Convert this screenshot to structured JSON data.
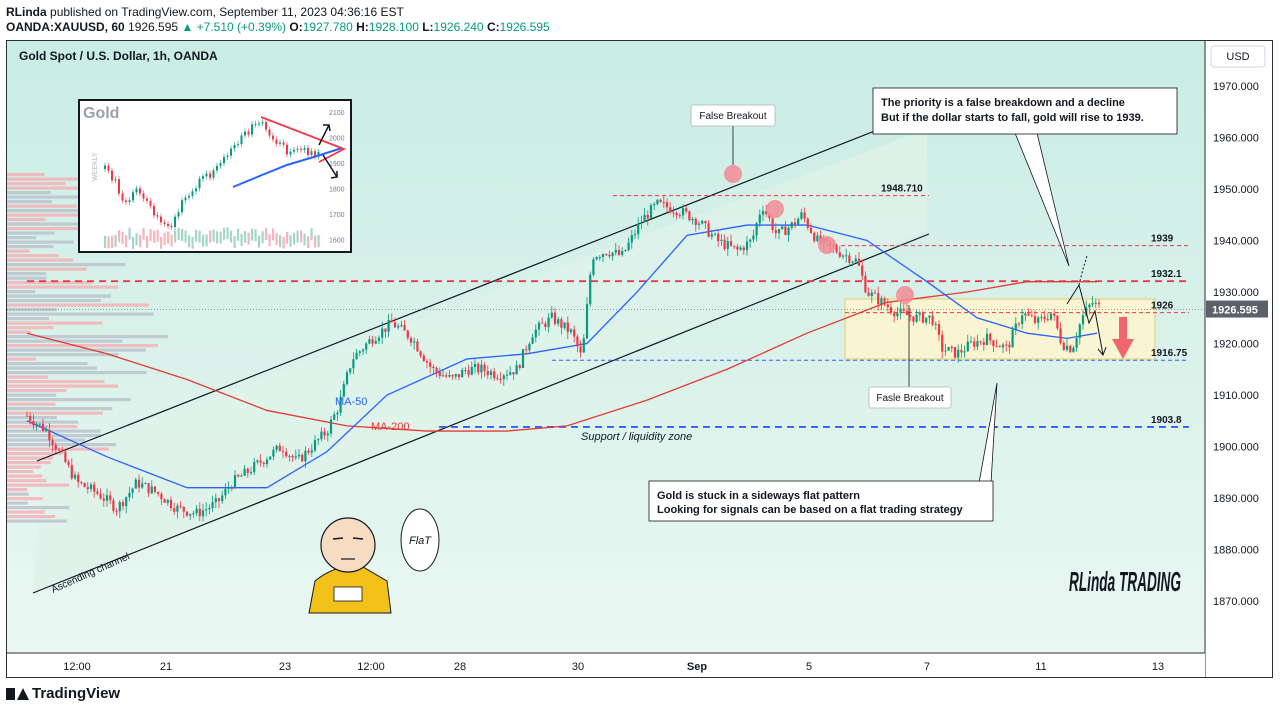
{
  "header": {
    "author": "RLinda",
    "published": "published on TradingView.com, September 11, 2023 04:36:16 EST",
    "symbol": "OANDA:XAUUSD, 60",
    "last": "1926.595",
    "change": "▲ +7.510 (+0.39%)",
    "o_label": "O:",
    "o": "1927.780",
    "h_label": "H:",
    "h": "1928.100",
    "l_label": "L:",
    "l": "1926.240",
    "c_label": "C:",
    "c": "1926.595"
  },
  "chart_title": "Gold Spot / U.S. Dollar, 1h, OANDA",
  "currency": "USD",
  "footer_brand": "TradingView",
  "annotations": {
    "false_breakout": "False Breakout",
    "fasle_breakout": "Fasle Breakout",
    "priority_line1": "The priority is a false breakdown and a decline",
    "priority_line2": "But if the dollar starts to fall, gold will rise to 1939.",
    "flat_line1": "Gold is stuck in a sideways flat pattern",
    "flat_line2": "Looking for signals can be based on a flat trading strategy",
    "support_zone": "Support / liquidity zone",
    "ascending_channel": "Ascending channel",
    "ma50": "MA-50",
    "ma200": "MA-200",
    "inset_title": "Gold",
    "inset_side": "WEEKLY",
    "inset_ticks": [
      "2100",
      "2000",
      "1900",
      "1800",
      "1700",
      "1600"
    ],
    "bubble": "FlaT",
    "rlinda_logo": "RLinda TRADING"
  },
  "colors": {
    "up": "#089981",
    "down": "#f23645",
    "ma50": "#2962ff",
    "ma200": "#e53935",
    "channel_fill": "#d6efe6",
    "range_fill": "#fff3c4",
    "level_red": "#f23645",
    "level_blue": "#2962ff"
  },
  "chart_data": {
    "type": "candlestick",
    "title": "Gold Spot / U.S. Dollar, 1h, OANDA",
    "yaxis_ticks": [
      "1970.000",
      "1960.000",
      "1950.000",
      "1940.000",
      "1930.000",
      "1920.000",
      "1910.000",
      "1900.000",
      "1890.000",
      "1880.000",
      "1870.000"
    ],
    "ylim": [
      1861,
      1979
    ],
    "xaxis_ticks": [
      "12:00",
      "21",
      "23",
      "12:00",
      "28",
      "30",
      "Sep",
      "5",
      "7",
      "11",
      "13"
    ],
    "last_price": "1926.595",
    "levels": [
      {
        "label": "1948.710",
        "value": 1948.71,
        "style": "red-dashed"
      },
      {
        "label": "1939",
        "value": 1939,
        "style": "red-dashed"
      },
      {
        "label": "1932.1",
        "value": 1932.1,
        "style": "red-dashed"
      },
      {
        "label": "1926",
        "value": 1926,
        "style": "red-dashed"
      },
      {
        "label": "1916.75",
        "value": 1916.75,
        "style": "blue-dashed"
      },
      {
        "label": "1903.8",
        "value": 1903.8,
        "style": "blue-dashed"
      }
    ],
    "price_path": [
      [
        0,
        1906
      ],
      [
        20,
        1903
      ],
      [
        35,
        1898
      ],
      [
        50,
        1893
      ],
      [
        70,
        1891
      ],
      [
        90,
        1888
      ],
      [
        110,
        1893
      ],
      [
        130,
        1891
      ],
      [
        150,
        1888
      ],
      [
        170,
        1887
      ],
      [
        190,
        1889
      ],
      [
        205,
        1893
      ],
      [
        220,
        1895
      ],
      [
        240,
        1898
      ],
      [
        255,
        1900
      ],
      [
        270,
        1897
      ],
      [
        285,
        1900
      ],
      [
        300,
        1903
      ],
      [
        312,
        1908
      ],
      [
        325,
        1917
      ],
      [
        345,
        1921
      ],
      [
        365,
        1924
      ],
      [
        385,
        1921
      ],
      [
        405,
        1915
      ],
      [
        425,
        1913
      ],
      [
        440,
        1915
      ],
      [
        455,
        1915
      ],
      [
        470,
        1914
      ],
      [
        490,
        1915
      ],
      [
        505,
        1922
      ],
      [
        525,
        1925
      ],
      [
        545,
        1922
      ],
      [
        555,
        1917
      ],
      [
        565,
        1937
      ],
      [
        580,
        1938
      ],
      [
        595,
        1937
      ],
      [
        615,
        1944
      ],
      [
        630,
        1947
      ],
      [
        650,
        1946
      ],
      [
        670,
        1944
      ],
      [
        690,
        1940
      ],
      [
        710,
        1938
      ],
      [
        725,
        1940
      ],
      [
        735,
        1947
      ],
      [
        750,
        1941
      ],
      [
        765,
        1943
      ],
      [
        775,
        1945
      ],
      [
        790,
        1940
      ],
      [
        810,
        1938
      ],
      [
        830,
        1936
      ],
      [
        840,
        1930
      ],
      [
        855,
        1928
      ],
      [
        870,
        1926
      ],
      [
        890,
        1925
      ],
      [
        905,
        1925
      ],
      [
        915,
        1919
      ],
      [
        930,
        1918
      ],
      [
        945,
        1920
      ],
      [
        960,
        1921
      ],
      [
        980,
        1919
      ],
      [
        995,
        1926
      ],
      [
        1010,
        1924
      ],
      [
        1025,
        1926
      ],
      [
        1035,
        1920
      ],
      [
        1045,
        1919
      ],
      [
        1055,
        1925
      ],
      [
        1065,
        1928
      ],
      [
        1075,
        1926.6
      ]
    ],
    "ma50_path": [
      [
        0,
        1905
      ],
      [
        80,
        1898
      ],
      [
        160,
        1892
      ],
      [
        240,
        1892
      ],
      [
        300,
        1899
      ],
      [
        360,
        1910
      ],
      [
        440,
        1917
      ],
      [
        500,
        1918
      ],
      [
        560,
        1920
      ],
      [
        610,
        1930
      ],
      [
        660,
        1941
      ],
      [
        720,
        1943
      ],
      [
        780,
        1943
      ],
      [
        840,
        1940
      ],
      [
        900,
        1932
      ],
      [
        950,
        1925
      ],
      [
        1000,
        1922
      ],
      [
        1040,
        1921
      ],
      [
        1070,
        1922
      ]
    ],
    "ma200_path": [
      [
        0,
        1922
      ],
      [
        80,
        1918
      ],
      [
        160,
        1913
      ],
      [
        240,
        1907
      ],
      [
        320,
        1904
      ],
      [
        400,
        1903
      ],
      [
        480,
        1903
      ],
      [
        540,
        1904
      ],
      [
        620,
        1909
      ],
      [
        700,
        1915
      ],
      [
        780,
        1922
      ],
      [
        860,
        1928
      ],
      [
        940,
        1930
      ],
      [
        1000,
        1932
      ],
      [
        1070,
        1932
      ]
    ]
  }
}
